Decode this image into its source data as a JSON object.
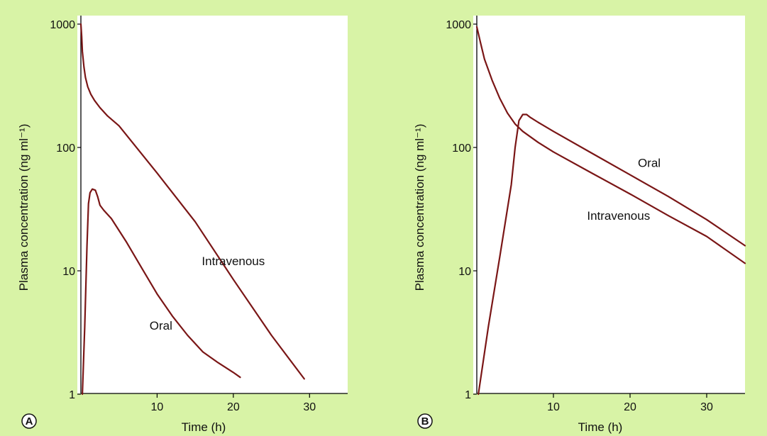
{
  "style": {
    "background": "#d8f3a6",
    "plot_background": "#ffffff",
    "curve_color": "#7a1616",
    "axis_color": "#000000"
  },
  "chart_data": [
    {
      "panel": "A",
      "type": "line",
      "xlabel": "Time (h)",
      "ylabel": "Plasma concentration (ng ml⁻¹)",
      "xlim": [
        0,
        35
      ],
      "ylim": [
        1,
        1000
      ],
      "yscale": "log",
      "xticks": [
        10,
        20,
        30
      ],
      "yticks": [
        1,
        10,
        100,
        1000
      ],
      "grid": false,
      "series": [
        {
          "name": "Intravenous",
          "x": [
            0,
            0.1,
            0.2,
            0.4,
            0.6,
            0.9,
            1.3,
            1.8,
            2.5,
            3.5,
            5,
            10,
            15,
            20,
            25,
            29.3
          ],
          "y": [
            1000,
            800,
            600,
            450,
            370,
            310,
            270,
            240,
            210,
            180,
            150,
            62,
            25,
            8.5,
            3,
            1.33
          ]
        },
        {
          "name": "Oral",
          "x": [
            0.2,
            0.5,
            0.8,
            1.0,
            1.2,
            1.5,
            1.9,
            2.2,
            2.5,
            3.0,
            4.0,
            6.0,
            8.0,
            10.0,
            12.0,
            14.0,
            16.0,
            18.0,
            20.0,
            20.9
          ],
          "y": [
            1,
            3.5,
            16,
            35,
            43,
            46,
            45,
            40,
            34,
            31,
            26.5,
            17,
            10.5,
            6.5,
            4.3,
            3,
            2.2,
            1.8,
            1.5,
            1.37
          ]
        }
      ],
      "annotations": [
        {
          "text": "Intravenous",
          "x": 20,
          "y": 12
        },
        {
          "text": "Oral",
          "x": 10.5,
          "y": 3.6
        }
      ]
    },
    {
      "panel": "B",
      "type": "line",
      "xlabel": "Time (h)",
      "ylabel": "Plasma concentration (ng ml⁻¹)",
      "xlim": [
        0,
        35
      ],
      "ylim": [
        1,
        1000
      ],
      "yscale": "log",
      "xticks": [
        10,
        20,
        30
      ],
      "yticks": [
        1,
        10,
        100,
        1000
      ],
      "grid": false,
      "series": [
        {
          "name": "Intravenous",
          "x": [
            0,
            0.5,
            1,
            2,
            3,
            4,
            5,
            6,
            8,
            10,
            15,
            20,
            25,
            30,
            35
          ],
          "y": [
            950,
            700,
            520,
            350,
            250,
            190,
            155,
            135,
            110,
            92,
            62,
            42,
            28,
            19,
            11.5
          ]
        },
        {
          "name": "Oral",
          "x": [
            0.2,
            1.5,
            3.0,
            4.5,
            5.0,
            5.5,
            6.0,
            6.5,
            7.0,
            8,
            10,
            15,
            20,
            25,
            30,
            35
          ],
          "y": [
            1,
            3.5,
            13,
            50,
            100,
            165,
            185,
            185,
            175,
            160,
            135,
            90,
            60,
            40,
            26,
            16
          ]
        }
      ],
      "annotations": [
        {
          "text": "Oral",
          "x": 22.5,
          "y": 75
        },
        {
          "text": "Intravenous",
          "x": 18.5,
          "y": 28
        }
      ]
    }
  ]
}
